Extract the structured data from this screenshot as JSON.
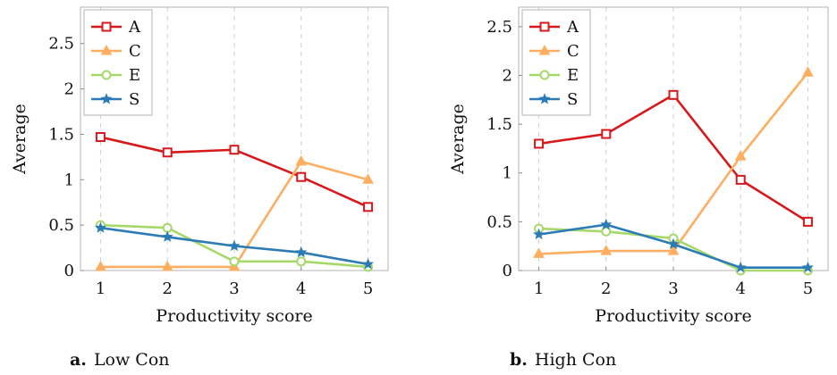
{
  "chart_data": [
    {
      "type": "line",
      "title": "",
      "xlabel": "Productivity score",
      "ylabel": "Average",
      "x": [
        1,
        2,
        3,
        4,
        5
      ],
      "xlim": [
        0.7,
        5.3
      ],
      "ylim": [
        0,
        2.9
      ],
      "yticks": [
        0,
        0.5,
        1,
        1.5,
        2,
        2.5
      ],
      "ytick_labels": [
        "0",
        "0.5",
        "1",
        "1.5",
        "2",
        "2.5"
      ],
      "grid": "vertical dashed",
      "legend": "top-left",
      "series": [
        {
          "name": "A",
          "values": [
            1.47,
            1.3,
            1.33,
            1.03,
            0.7
          ]
        },
        {
          "name": "C",
          "values": [
            0.04,
            0.04,
            0.04,
            1.2,
            1.0
          ]
        },
        {
          "name": "E",
          "values": [
            0.5,
            0.47,
            0.1,
            0.1,
            0.04
          ]
        },
        {
          "name": "S",
          "values": [
            0.47,
            0.37,
            0.27,
            0.2,
            0.07
          ]
        }
      ],
      "caption_label": "a.",
      "caption_text": "Low Con"
    },
    {
      "type": "line",
      "title": "",
      "xlabel": "Productivity score",
      "ylabel": "Average",
      "x": [
        1,
        2,
        3,
        4,
        5
      ],
      "xlim": [
        0.7,
        5.3
      ],
      "ylim": [
        0,
        2.7
      ],
      "yticks": [
        0,
        0.5,
        1,
        1.5,
        2,
        2.5
      ],
      "ytick_labels": [
        "0",
        "0.5",
        "1",
        "1.5",
        "2",
        "2.5"
      ],
      "grid": "vertical dashed",
      "legend": "top-left",
      "series": [
        {
          "name": "A",
          "values": [
            1.3,
            1.4,
            1.8,
            0.93,
            0.5
          ]
        },
        {
          "name": "C",
          "values": [
            0.17,
            0.2,
            0.2,
            1.17,
            2.03
          ]
        },
        {
          "name": "E",
          "values": [
            0.43,
            0.4,
            0.33,
            0.0,
            0.0
          ]
        },
        {
          "name": "S",
          "values": [
            0.37,
            0.47,
            0.27,
            0.03,
            0.03
          ]
        }
      ],
      "caption_label": "b.",
      "caption_text": "High Con"
    }
  ],
  "series_style": {
    "A": {
      "color": "#d7191c",
      "marker": "square"
    },
    "C": {
      "color": "#fdae61",
      "marker": "triangle"
    },
    "E": {
      "color": "#a6d96a",
      "marker": "circle"
    },
    "S": {
      "color": "#2c7bb6",
      "marker": "star"
    }
  }
}
